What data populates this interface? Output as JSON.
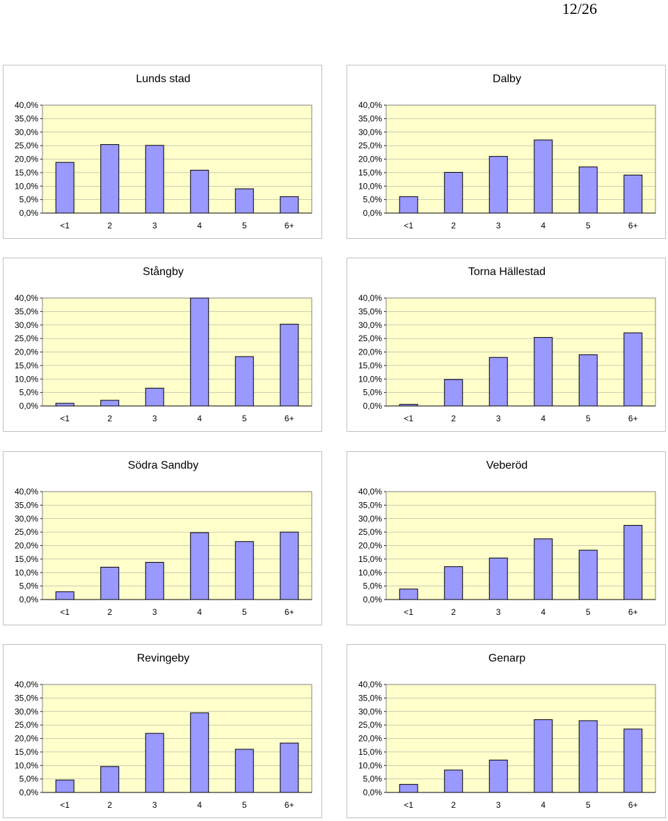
{
  "page": {
    "number": "12/26"
  },
  "chart_data": [
    {
      "type": "bar",
      "title": "Lunds stad",
      "categories": [
        "<1",
        "2",
        "3",
        "4",
        "5",
        "6+"
      ],
      "values": [
        18.8,
        25.4,
        25.1,
        15.9,
        9.0,
        6.1
      ],
      "ylim": [
        0,
        40
      ],
      "yticks": [
        "0,0%",
        "5,0%",
        "10,0%",
        "15,0%",
        "20,0%",
        "25,0%",
        "30,0%",
        "35,0%",
        "40,0%"
      ],
      "grid": true,
      "bar_color": "#9999ff",
      "plot_background": "#ffffcc"
    },
    {
      "type": "bar",
      "title": "Dalby",
      "categories": [
        "<1",
        "2",
        "3",
        "4",
        "5",
        "6+"
      ],
      "values": [
        6.1,
        15.1,
        21.0,
        27.1,
        17.1,
        14.1
      ],
      "ylim": [
        0,
        40
      ],
      "yticks": [
        "0,0%",
        "5,0%",
        "10,0%",
        "15,0%",
        "20,0%",
        "25,0%",
        "30,0%",
        "35,0%",
        "40,0%"
      ],
      "grid": true,
      "bar_color": "#9999ff",
      "plot_background": "#ffffcc"
    },
    {
      "type": "bar",
      "title": "Stångby",
      "categories": [
        "<1",
        "2",
        "3",
        "4",
        "5",
        "6+"
      ],
      "values": [
        1.0,
        2.1,
        6.6,
        40.0,
        18.3,
        30.3
      ],
      "ylim": [
        0,
        40
      ],
      "yticks": [
        "0,0%",
        "5,0%",
        "10,0%",
        "15,0%",
        "20,0%",
        "25,0%",
        "30,0%",
        "35,0%",
        "40,0%"
      ],
      "grid": true,
      "bar_color": "#9999ff",
      "plot_background": "#ffffcc"
    },
    {
      "type": "bar",
      "title": "Torna Hällestad",
      "categories": [
        "<1",
        "2",
        "3",
        "4",
        "5",
        "6+"
      ],
      "values": [
        0.6,
        9.8,
        18.0,
        25.4,
        19.0,
        27.1
      ],
      "ylim": [
        0,
        40
      ],
      "yticks": [
        "0,0%",
        "5,0%",
        "10,0%",
        "15,0%",
        "20,0%",
        "25,0%",
        "30,0%",
        "35,0%",
        "40,0%"
      ],
      "grid": true,
      "bar_color": "#9999ff",
      "plot_background": "#ffffcc"
    },
    {
      "type": "bar",
      "title": "Södra Sandby",
      "categories": [
        "<1",
        "2",
        "3",
        "4",
        "5",
        "6+"
      ],
      "values": [
        2.9,
        12.0,
        13.8,
        24.8,
        21.5,
        25.0
      ],
      "ylim": [
        0,
        40
      ],
      "yticks": [
        "0,0%",
        "5,0%",
        "10,0%",
        "15,0%",
        "20,0%",
        "25,0%",
        "30,0%",
        "35,0%",
        "40,0%"
      ],
      "grid": true,
      "bar_color": "#9999ff",
      "plot_background": "#ffffcc"
    },
    {
      "type": "bar",
      "title": "Veberöd",
      "categories": [
        "<1",
        "2",
        "3",
        "4",
        "5",
        "6+"
      ],
      "values": [
        3.9,
        12.2,
        15.4,
        22.5,
        18.3,
        27.5
      ],
      "ylim": [
        0,
        40
      ],
      "yticks": [
        "0,0%",
        "5,0%",
        "10,0%",
        "15,0%",
        "20,0%",
        "25,0%",
        "30,0%",
        "35,0%",
        "40,0%"
      ],
      "grid": true,
      "bar_color": "#9999ff",
      "plot_background": "#ffffcc"
    },
    {
      "type": "bar",
      "title": "Revingeby",
      "categories": [
        "<1",
        "2",
        "3",
        "4",
        "5",
        "6+"
      ],
      "values": [
        4.6,
        9.6,
        21.9,
        29.5,
        16.0,
        18.3
      ],
      "ylim": [
        0,
        40
      ],
      "yticks": [
        "0,0%",
        "5,0%",
        "10,0%",
        "15,0%",
        "20,0%",
        "25,0%",
        "30,0%",
        "35,0%",
        "40,0%"
      ],
      "grid": true,
      "bar_color": "#9999ff",
      "plot_background": "#ffffcc"
    },
    {
      "type": "bar",
      "title": "Genarp",
      "categories": [
        "<1",
        "2",
        "3",
        "4",
        "5",
        "6+"
      ],
      "values": [
        3.0,
        8.3,
        12.0,
        27.0,
        26.6,
        23.5
      ],
      "ylim": [
        0,
        40
      ],
      "yticks": [
        "0,0%",
        "5,0%",
        "10,0%",
        "15,0%",
        "20,0%",
        "25,0%",
        "30,0%",
        "35,0%",
        "40,0%"
      ],
      "grid": true,
      "bar_color": "#9999ff",
      "plot_background": "#ffffcc"
    }
  ]
}
